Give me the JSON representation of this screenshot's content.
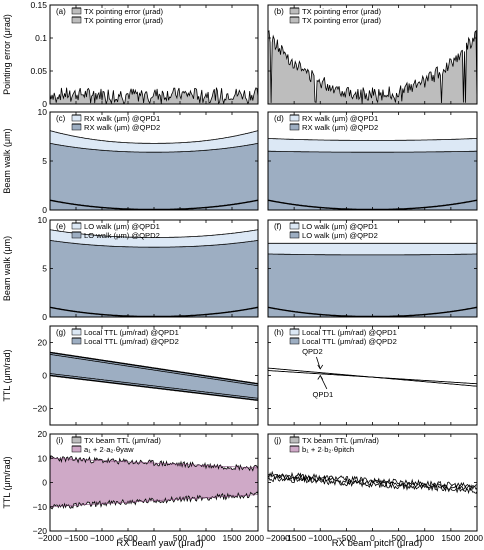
{
  "figure": {
    "xlabels": [
      "RX beam yaw (μrad)",
      "RX beam pitch (μrad)"
    ],
    "ylabels": [
      "Pointing error (μrad)",
      "Beam walk (μm)",
      "Beam walk (μm)",
      "TTL (μm/rad)",
      "TTL (μm/rad)"
    ],
    "x_ticks": [
      "−2000",
      "−1500",
      "−1000",
      "−500",
      "0",
      "500",
      "1000",
      "1500",
      "2000"
    ],
    "x_ticks_right": [
      "−2000",
      "−1500",
      "−1000",
      "−500",
      "0",
      "500",
      "1000",
      "1500",
      "2000"
    ]
  },
  "chart_data": [
    {
      "panel": "a",
      "label": "(a)",
      "type": "area",
      "row": 0,
      "col": 0,
      "ylim": [
        0,
        0.15
      ],
      "yticks": [
        "0",
        "0.05",
        "0.1",
        "0.15"
      ],
      "ytick_values": [
        0,
        0.05,
        0.1,
        0.15
      ],
      "xlim": [
        -2000,
        2000
      ],
      "legend": [
        "TX pointing error (μrad)",
        "TX pointing error (μrad)"
      ],
      "fill": "#bdbdbd",
      "shape": "noise_flat",
      "level": 0.015
    },
    {
      "panel": "b",
      "label": "(b)",
      "type": "area",
      "row": 0,
      "col": 1,
      "ylim": [
        0,
        0.15
      ],
      "yticks": [],
      "ytick_values": [
        0,
        0.05,
        0.1,
        0.15
      ],
      "xlim": [
        -2000,
        2000
      ],
      "legend": [
        "TX pointing error (μrad)",
        "TX pointing error (μrad)"
      ],
      "fill": "#bdbdbd",
      "shape": "noise_v",
      "center": 0.015,
      "edge": 0.105
    },
    {
      "panel": "c",
      "label": "(c)",
      "type": "area",
      "row": 1,
      "col": 0,
      "ylim": [
        0,
        10
      ],
      "yticks": [
        "0",
        "5",
        "10"
      ],
      "ytick_values": [
        0,
        5,
        10
      ],
      "xlim": [
        -2000,
        2000
      ],
      "legend": [
        "RX walk (μm) @QPD1",
        "RX walk (μm) @QPD2"
      ],
      "upper": {
        "center": 6.8,
        "edge": 8.1
      },
      "lower": {
        "center": 5.9,
        "edge": 6.8
      },
      "bottom": {
        "center": 0.05,
        "edge": 1.0
      }
    },
    {
      "panel": "d",
      "label": "(d)",
      "type": "area",
      "row": 1,
      "col": 1,
      "ylim": [
        0,
        10
      ],
      "yticks": [],
      "ytick_values": [
        0,
        5,
        10
      ],
      "xlim": [
        -2000,
        2000
      ],
      "legend": [
        "RX walk (μm) @QPD1",
        "RX walk (μm) @QPD2"
      ],
      "upper": {
        "center": 7.1,
        "edge": 7.3
      },
      "lower": {
        "center": 5.9,
        "edge": 6.0
      },
      "bottom": {
        "center": 0.05,
        "edge": 1.0
      }
    },
    {
      "panel": "e",
      "label": "(e)",
      "type": "area",
      "row": 2,
      "col": 0,
      "ylim": [
        0,
        10
      ],
      "yticks": [
        "0",
        "5",
        "10"
      ],
      "ytick_values": [
        0,
        5,
        10
      ],
      "xlim": [
        -2000,
        2000
      ],
      "legend": [
        "LO walk (μm) @QPD1",
        "LO walk (μm) @QPD2"
      ],
      "upper": {
        "center": 8.2,
        "edge": 9.0
      },
      "lower": {
        "center": 7.2,
        "edge": 7.9
      },
      "bottom": {
        "center": 0.05,
        "edge": 1.0
      }
    },
    {
      "panel": "f",
      "label": "(f)",
      "type": "area",
      "row": 2,
      "col": 1,
      "ylim": [
        0,
        10
      ],
      "yticks": [],
      "ytick_values": [
        0,
        5,
        10
      ],
      "xlim": [
        -2000,
        2000
      ],
      "legend": [
        "LO walk (μm) @QPD1",
        "LO walk (μm) @QPD2"
      ],
      "upper": {
        "center": 7.6,
        "edge": 7.6
      },
      "lower": {
        "center": 6.4,
        "edge": 6.5
      },
      "bottom": {
        "center": 0.05,
        "edge": 1.0
      }
    },
    {
      "panel": "g",
      "label": "(g)",
      "type": "area",
      "row": 3,
      "col": 0,
      "ylim": [
        -30,
        30
      ],
      "yticks": [
        "−20",
        "0",
        "20"
      ],
      "ytick_values": [
        -20,
        0,
        20
      ],
      "xlim": [
        -2000,
        2000
      ],
      "legend": [
        "Local TTL (μm/rad) @QPD1",
        "Local TTL (μm/rad) @QPD2"
      ],
      "line1": [
        [
          -2000,
          14
        ],
        [
          2000,
          -5
        ]
      ],
      "line2": [
        [
          -2000,
          0
        ],
        [
          2000,
          -15
        ]
      ]
    },
    {
      "panel": "h",
      "label": "(h)",
      "type": "line",
      "row": 3,
      "col": 1,
      "ylim": [
        -30,
        30
      ],
      "yticks": [],
      "ytick_values": [
        -20,
        0,
        20
      ],
      "xlim": [
        -2000,
        2000
      ],
      "legend": [
        "Local TTL (μm/rad) @QPD1",
        "Local TTL (μm/rad) @QPD2"
      ],
      "line1": [
        [
          -2000,
          3
        ],
        [
          2000,
          -5
        ]
      ],
      "line2": [
        [
          -2000,
          4.5
        ],
        [
          2000,
          -6.5
        ]
      ],
      "annotations": [
        {
          "text": "QPD2",
          "x": -1150,
          "y": 13,
          "arrow_to": [
            -1000,
            4
          ]
        },
        {
          "text": "QPD1",
          "x": -950,
          "y": -13,
          "arrow_to": [
            -1000,
            0
          ]
        }
      ]
    },
    {
      "panel": "i",
      "label": "(i)",
      "type": "area",
      "row": 4,
      "col": 0,
      "ylim": [
        -20,
        20
      ],
      "yticks": [
        "−20",
        "−10",
        "0",
        "10",
        "20"
      ],
      "ytick_values": [
        -20,
        -10,
        0,
        10,
        20
      ],
      "xlim": [
        -2000,
        2000
      ],
      "legend": [
        "TX beam TTL (μm/rad)",
        "a₁ + 2·a₂·θyaw"
      ],
      "fill": "#cfa9c7",
      "upper": [
        [
          -2000,
          10
        ],
        [
          2000,
          6
        ]
      ],
      "lower": [
        [
          -2000,
          -10
        ],
        [
          2000,
          -5
        ]
      ]
    },
    {
      "panel": "j",
      "label": "(j)",
      "type": "line",
      "row": 4,
      "col": 1,
      "ylim": [
        -20,
        20
      ],
      "yticks": [],
      "ytick_values": [
        -20,
        -10,
        0,
        10,
        20
      ],
      "xlim": [
        -2000,
        2000
      ],
      "legend": [
        "TX beam TTL (μm/rad)",
        "b₁ + 2·b₂·θpitch"
      ],
      "band": [
        [
          -2000,
          2.5
        ],
        [
          2000,
          -2.5
        ]
      ]
    }
  ]
}
